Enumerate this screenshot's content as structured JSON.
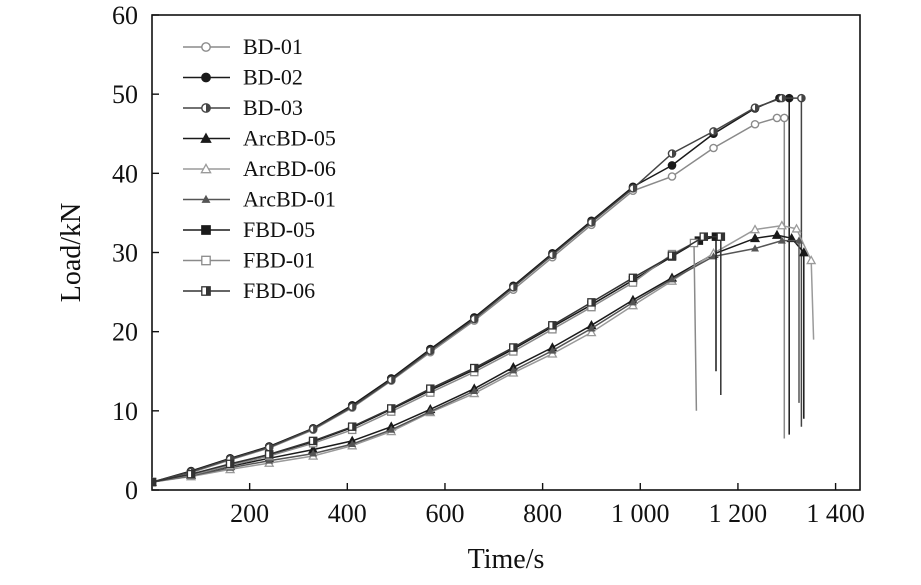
{
  "chart_data": {
    "type": "line",
    "xlabel": "Time/s",
    "ylabel": "Load/kN",
    "xlim": [
      0,
      1450
    ],
    "ylim": [
      0,
      60
    ],
    "x_ticks": [
      200,
      400,
      600,
      800,
      1000,
      1200,
      1400
    ],
    "x_tick_labels": [
      "200",
      "400",
      "600",
      "800",
      "1 000",
      "1 200",
      "1 400"
    ],
    "y_ticks": [
      0,
      10,
      20,
      30,
      40,
      50,
      60
    ],
    "y_tick_labels": [
      "0",
      "10",
      "20",
      "30",
      "40",
      "50",
      "60"
    ],
    "grid": false,
    "legend_position": "top-left",
    "series": [
      {
        "name": "BD-01",
        "marker": "circle-open",
        "color": "#8a8a8a",
        "points": [
          [
            0,
            1
          ],
          [
            80,
            2.2
          ],
          [
            160,
            3.8
          ],
          [
            240,
            5.3
          ],
          [
            330,
            7.6
          ],
          [
            410,
            10.4
          ],
          [
            490,
            13.8
          ],
          [
            570,
            17.4
          ],
          [
            660,
            21.4
          ],
          [
            740,
            25.3
          ],
          [
            820,
            29.4
          ],
          [
            900,
            33.5
          ],
          [
            985,
            37.8
          ],
          [
            1065,
            39.6
          ],
          [
            1150,
            43.2
          ],
          [
            1235,
            46.2
          ],
          [
            1280,
            47
          ],
          [
            1295,
            47
          ]
        ],
        "drop": [
          1295,
          6.5
        ]
      },
      {
        "name": "BD-02",
        "marker": "circle-filled",
        "color": "#1a1a1a",
        "points": [
          [
            0,
            1
          ],
          [
            80,
            2.4
          ],
          [
            160,
            4
          ],
          [
            240,
            5.5
          ],
          [
            330,
            7.8
          ],
          [
            410,
            10.7
          ],
          [
            490,
            14.1
          ],
          [
            570,
            17.8
          ],
          [
            660,
            21.8
          ],
          [
            740,
            25.8
          ],
          [
            820,
            29.9
          ],
          [
            900,
            34
          ],
          [
            985,
            38.3
          ],
          [
            1065,
            41
          ],
          [
            1150,
            45
          ],
          [
            1235,
            48.2
          ],
          [
            1285,
            49.5
          ],
          [
            1305,
            49.5
          ]
        ],
        "drop": [
          1305,
          7
        ]
      },
      {
        "name": "BD-03",
        "marker": "half-filled",
        "color": "#444444",
        "points": [
          [
            0,
            1
          ],
          [
            80,
            2.3
          ],
          [
            160,
            3.9
          ],
          [
            240,
            5.4
          ],
          [
            330,
            7.7
          ],
          [
            410,
            10.5
          ],
          [
            490,
            13.9
          ],
          [
            570,
            17.6
          ],
          [
            660,
            21.6
          ],
          [
            740,
            25.6
          ],
          [
            820,
            29.7
          ],
          [
            900,
            33.8
          ],
          [
            985,
            38.1
          ],
          [
            1065,
            42.5
          ],
          [
            1150,
            45.3
          ],
          [
            1235,
            48.3
          ],
          [
            1290,
            49.5
          ],
          [
            1330,
            49.5
          ]
        ],
        "drop": [
          1330,
          8
        ]
      },
      {
        "name": "ArcBD-05",
        "marker": "triangle-filled",
        "color": "#1a1a1a",
        "points": [
          [
            0,
            1
          ],
          [
            80,
            1.9
          ],
          [
            160,
            3
          ],
          [
            240,
            4
          ],
          [
            330,
            5.1
          ],
          [
            410,
            6.2
          ],
          [
            490,
            8
          ],
          [
            570,
            10.2
          ],
          [
            660,
            12.8
          ],
          [
            740,
            15.5
          ],
          [
            820,
            18
          ],
          [
            900,
            20.8
          ],
          [
            985,
            24
          ],
          [
            1065,
            26.8
          ],
          [
            1150,
            29.8
          ],
          [
            1235,
            31.8
          ],
          [
            1280,
            32.2
          ],
          [
            1310,
            31.8
          ],
          [
            1335,
            30
          ]
        ],
        "drop": [
          1335,
          9
        ]
      },
      {
        "name": "ArcBD-06",
        "marker": "triangle-open",
        "color": "#9a9a9a",
        "points": [
          [
            0,
            1
          ],
          [
            80,
            1.7
          ],
          [
            160,
            2.6
          ],
          [
            240,
            3.4
          ],
          [
            330,
            4.3
          ],
          [
            410,
            5.6
          ],
          [
            490,
            7.4
          ],
          [
            570,
            9.8
          ],
          [
            660,
            12.2
          ],
          [
            740,
            14.8
          ],
          [
            820,
            17.2
          ],
          [
            900,
            19.9
          ],
          [
            985,
            23.3
          ],
          [
            1065,
            26.4
          ],
          [
            1150,
            29.9
          ],
          [
            1235,
            32.9
          ],
          [
            1290,
            33.4
          ],
          [
            1320,
            33
          ],
          [
            1350,
            29
          ]
        ],
        "drop": [
          1355,
          19
        ]
      },
      {
        "name": "ArcBD-01",
        "marker": "triangle-small",
        "color": "#555555",
        "points": [
          [
            0,
            1
          ],
          [
            80,
            1.8
          ],
          [
            160,
            2.8
          ],
          [
            240,
            3.7
          ],
          [
            330,
            4.6
          ],
          [
            410,
            5.8
          ],
          [
            490,
            7.6
          ],
          [
            570,
            9.9
          ],
          [
            660,
            12.5
          ],
          [
            740,
            15.1
          ],
          [
            820,
            17.6
          ],
          [
            900,
            20.4
          ],
          [
            985,
            23.7
          ],
          [
            1065,
            26.6
          ],
          [
            1150,
            29.5
          ],
          [
            1235,
            30.5
          ],
          [
            1290,
            31.5
          ],
          [
            1325,
            31.5
          ]
        ],
        "drop": [
          1325,
          11
        ]
      },
      {
        "name": "FBD-05",
        "marker": "square-filled",
        "color": "#1a1a1a",
        "points": [
          [
            0,
            1
          ],
          [
            80,
            2
          ],
          [
            160,
            3.2
          ],
          [
            240,
            4.4
          ],
          [
            330,
            6.1
          ],
          [
            410,
            7.9
          ],
          [
            490,
            10.2
          ],
          [
            570,
            12.6
          ],
          [
            660,
            15.2
          ],
          [
            740,
            17.8
          ],
          [
            820,
            20.6
          ],
          [
            900,
            23.4
          ],
          [
            985,
            26.5
          ],
          [
            1065,
            29.5
          ],
          [
            1120,
            31.5
          ],
          [
            1155,
            32
          ]
        ],
        "drop": [
          1155,
          15
        ]
      },
      {
        "name": "FBD-01",
        "marker": "square-open",
        "color": "#8a8a8a",
        "points": [
          [
            0,
            1
          ],
          [
            80,
            1.9
          ],
          [
            160,
            3.1
          ],
          [
            240,
            4.3
          ],
          [
            330,
            5.9
          ],
          [
            410,
            7.6
          ],
          [
            490,
            9.9
          ],
          [
            570,
            12.3
          ],
          [
            660,
            14.9
          ],
          [
            740,
            17.5
          ],
          [
            820,
            20.3
          ],
          [
            900,
            23.1
          ],
          [
            985,
            26.2
          ],
          [
            1065,
            29.8
          ],
          [
            1110,
            31.2
          ]
        ],
        "drop": [
          1115,
          10
        ]
      },
      {
        "name": "FBD-06",
        "marker": "square-half",
        "color": "#333333",
        "points": [
          [
            0,
            1
          ],
          [
            80,
            2
          ],
          [
            160,
            3.3
          ],
          [
            240,
            4.5
          ],
          [
            330,
            6.2
          ],
          [
            410,
            8
          ],
          [
            490,
            10.3
          ],
          [
            570,
            12.8
          ],
          [
            660,
            15.4
          ],
          [
            740,
            18
          ],
          [
            820,
            20.8
          ],
          [
            900,
            23.7
          ],
          [
            985,
            26.8
          ],
          [
            1065,
            29.6
          ],
          [
            1130,
            32
          ],
          [
            1165,
            32
          ]
        ],
        "drop": [
          1165,
          12
        ]
      }
    ]
  }
}
